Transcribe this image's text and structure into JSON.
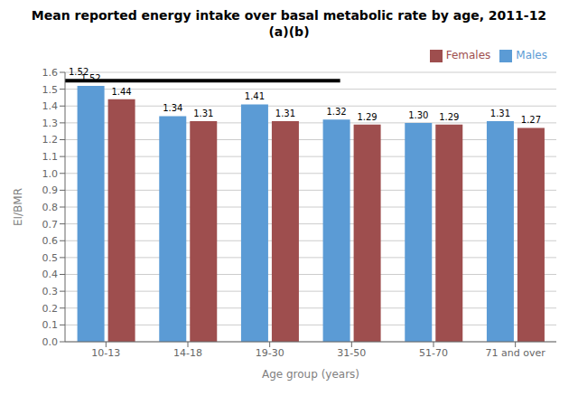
{
  "chart_data": {
    "type": "bar",
    "title": "Mean reported energy intake over basal metabolic rate by age, 2011-12",
    "subtitle": "(a)(b)",
    "x_label": "Age group (years)",
    "y_label": "EI/BMR",
    "categories": [
      "10-13",
      "14-18",
      "19-30",
      "31-50",
      "51-70",
      "71 and over"
    ],
    "series": [
      {
        "name": "Males",
        "color": "#5B9BD5",
        "values": [
          1.52,
          1.34,
          1.41,
          1.32,
          1.3,
          1.31
        ],
        "value_labels": [
          "1.52",
          "1.34",
          "1.41",
          "1.32",
          "1.30",
          "1.31"
        ]
      },
      {
        "name": "Females",
        "color": "#9E4E4E",
        "values": [
          1.44,
          1.31,
          1.31,
          1.29,
          1.29,
          1.27
        ],
        "value_labels": [
          "1.44",
          "1.31",
          "1.31",
          "1.29",
          "1.29",
          "1.27"
        ]
      }
    ],
    "ylim": [
      0.0,
      1.6
    ],
    "yticks": [
      {
        "value": 0,
        "label": "0.0"
      },
      0.1,
      0.2,
      0.3,
      0.4,
      0.5,
      0.6,
      0.7,
      0.8,
      0.9,
      {
        "value": 1,
        "label": "1.0"
      },
      1.1,
      1.2,
      1.3,
      1.4,
      1.5,
      1.6
    ],
    "annotations": [
      {
        "text": "1.52",
        "y": 1.55
      }
    ],
    "data_labels": true,
    "grid": true,
    "legend": "upper right"
  }
}
